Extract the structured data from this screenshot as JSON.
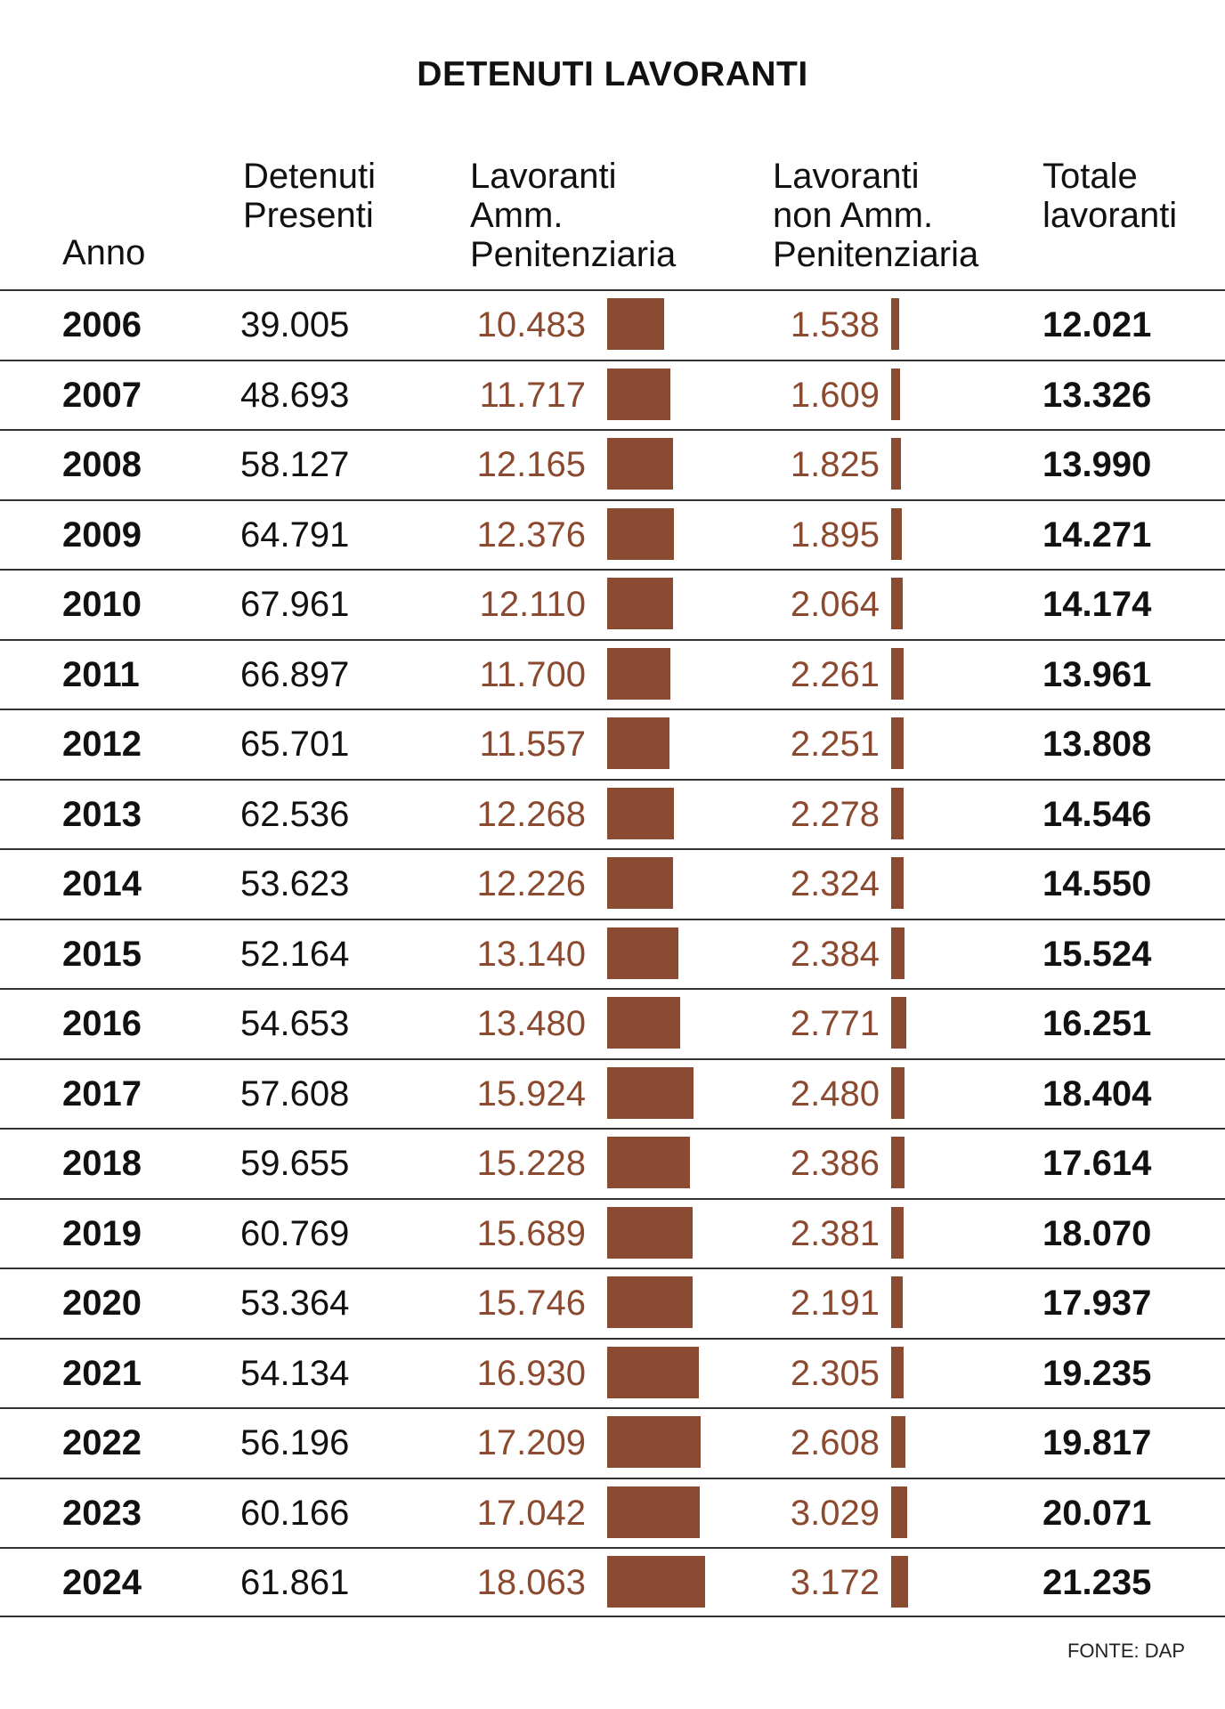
{
  "title": "DETENUTI LAVORANTI",
  "source": "FONTE: DAP",
  "accent_color": "#8b4a32",
  "chart_data": {
    "type": "table",
    "title": "DETENUTI LAVORANTI",
    "columns": [
      "Anno",
      "Detenuti\nPresenti",
      "Lavoranti\nAmm.\nPenitenziaria",
      "Lavoranti\nnon Amm.\nPenitenziaria",
      "Totale\nlavoranti"
    ],
    "rows": [
      {
        "year": "2006",
        "presenti": "39.005",
        "amm": "10.483",
        "amm_value": 10483,
        "nonamm": "1.538",
        "nonamm_value": 1538,
        "totale": "12.021"
      },
      {
        "year": "2007",
        "presenti": "48.693",
        "amm": "11.717",
        "amm_value": 11717,
        "nonamm": "1.609",
        "nonamm_value": 1609,
        "totale": "13.326"
      },
      {
        "year": "2008",
        "presenti": "58.127",
        "amm": "12.165",
        "amm_value": 12165,
        "nonamm": "1.825",
        "nonamm_value": 1825,
        "totale": "13.990"
      },
      {
        "year": "2009",
        "presenti": "64.791",
        "amm": "12.376",
        "amm_value": 12376,
        "nonamm": "1.895",
        "nonamm_value": 1895,
        "totale": "14.271"
      },
      {
        "year": "2010",
        "presenti": "67.961",
        "amm": "12.110",
        "amm_value": 12110,
        "nonamm": "2.064",
        "nonamm_value": 2064,
        "totale": "14.174"
      },
      {
        "year": "2011",
        "presenti": "66.897",
        "amm": "11.700",
        "amm_value": 11700,
        "nonamm": "2.261",
        "nonamm_value": 2261,
        "totale": "13.961"
      },
      {
        "year": "2012",
        "presenti": "65.701",
        "amm": "11.557",
        "amm_value": 11557,
        "nonamm": "2.251",
        "nonamm_value": 2251,
        "totale": "13.808"
      },
      {
        "year": "2013",
        "presenti": "62.536",
        "amm": "12.268",
        "amm_value": 12268,
        "nonamm": "2.278",
        "nonamm_value": 2278,
        "totale": "14.546"
      },
      {
        "year": "2014",
        "presenti": "53.623",
        "amm": "12.226",
        "amm_value": 12226,
        "nonamm": "2.324",
        "nonamm_value": 2324,
        "totale": "14.550"
      },
      {
        "year": "2015",
        "presenti": "52.164",
        "amm": "13.140",
        "amm_value": 13140,
        "nonamm": "2.384",
        "nonamm_value": 2384,
        "totale": "15.524"
      },
      {
        "year": "2016",
        "presenti": "54.653",
        "amm": "13.480",
        "amm_value": 13480,
        "nonamm": "2.771",
        "nonamm_value": 2771,
        "totale": "16.251"
      },
      {
        "year": "2017",
        "presenti": "57.608",
        "amm": "15.924",
        "amm_value": 15924,
        "nonamm": "2.480",
        "nonamm_value": 2480,
        "totale": "18.404"
      },
      {
        "year": "2018",
        "presenti": "59.655",
        "amm": "15.228",
        "amm_value": 15228,
        "nonamm": "2.386",
        "nonamm_value": 2386,
        "totale": "17.614"
      },
      {
        "year": "2019",
        "presenti": "60.769",
        "amm": "15.689",
        "amm_value": 15689,
        "nonamm": "2.381",
        "nonamm_value": 2381,
        "totale": "18.070"
      },
      {
        "year": "2020",
        "presenti": "53.364",
        "amm": "15.746",
        "amm_value": 15746,
        "nonamm": "2.191",
        "nonamm_value": 2191,
        "totale": "17.937"
      },
      {
        "year": "2021",
        "presenti": "54.134",
        "amm": "16.930",
        "amm_value": 16930,
        "nonamm": "2.305",
        "nonamm_value": 2305,
        "totale": "19.235"
      },
      {
        "year": "2022",
        "presenti": "56.196",
        "amm": "17.209",
        "amm_value": 17209,
        "nonamm": "2.608",
        "nonamm_value": 2608,
        "totale": "19.817"
      },
      {
        "year": "2023",
        "presenti": "60.166",
        "amm": "17.042",
        "amm_value": 17042,
        "nonamm": "3.029",
        "nonamm_value": 3029,
        "totale": "20.071"
      },
      {
        "year": "2024",
        "presenti": "61.861",
        "amm": "18.063",
        "amm_value": 18063,
        "nonamm": "3.172",
        "nonamm_value": 3172,
        "totale": "21.235"
      }
    ]
  }
}
